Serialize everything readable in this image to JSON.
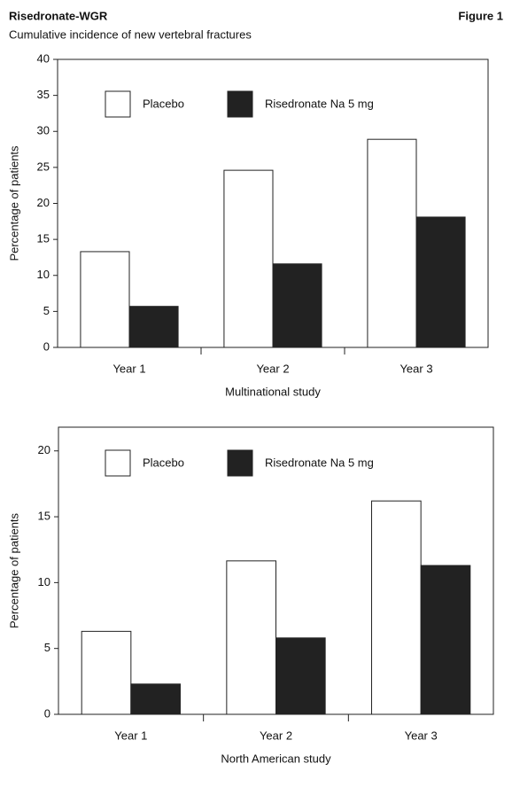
{
  "header": {
    "title": "Risedronate-WGR",
    "figure": "Figure 1",
    "subtitle": "Cumulative incidence of new vertebral fractures"
  },
  "chart_data": [
    {
      "type": "bar",
      "categories": [
        "Year 1",
        "Year 2",
        "Year 3"
      ],
      "series": [
        {
          "name": "Placebo",
          "color": "#ffffff",
          "values": [
            13.3,
            24.6,
            28.9
          ]
        },
        {
          "name": "Risedronate Na 5 mg",
          "color": "#222222",
          "values": [
            5.7,
            11.6,
            18.1
          ]
        }
      ],
      "x_label": "Multinational study",
      "y_label": "Percentage of patients",
      "ylim": [
        0,
        40
      ],
      "yticks": [
        0,
        5,
        10,
        15,
        20,
        25,
        30,
        35,
        40
      ],
      "grid": false,
      "legend": "top-left"
    },
    {
      "type": "bar",
      "categories": [
        "Year 1",
        "Year 2",
        "Year 3"
      ],
      "series": [
        {
          "name": "Placebo",
          "color": "#ffffff",
          "values": [
            6.3,
            11.65,
            16.2
          ]
        },
        {
          "name": "Risedronate Na 5 mg",
          "color": "#222222",
          "values": [
            2.3,
            5.8,
            11.3
          ]
        }
      ],
      "x_label": "North American study",
      "y_label": "Percentage of patients",
      "ylim": [
        0,
        21.8
      ],
      "yticks": [
        0,
        5,
        10,
        15,
        20
      ],
      "grid": false,
      "legend": "top-left"
    }
  ]
}
